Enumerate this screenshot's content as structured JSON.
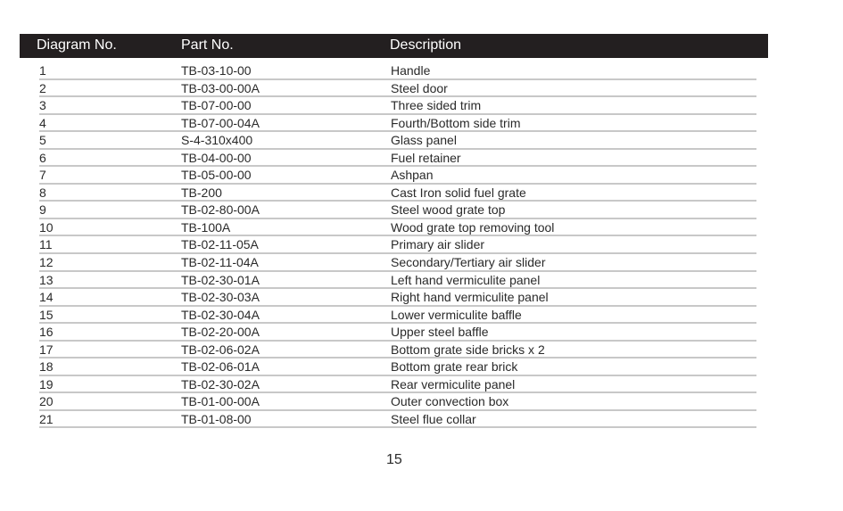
{
  "table": {
    "headers": [
      "Diagram No.",
      "Part No.",
      "Description"
    ],
    "rows": [
      [
        "1",
        "TB-03-10-00",
        "Handle"
      ],
      [
        "2",
        "TB-03-00-00A",
        "Steel door"
      ],
      [
        "3",
        "TB-07-00-00",
        "Three sided trim"
      ],
      [
        "4",
        "TB-07-00-04A",
        "Fourth/Bottom side trim"
      ],
      [
        "5",
        "S-4-310x400",
        "Glass panel"
      ],
      [
        "6",
        "TB-04-00-00",
        "Fuel retainer"
      ],
      [
        "7",
        "TB-05-00-00",
        "Ashpan"
      ],
      [
        "8",
        "TB-200",
        "Cast Iron solid fuel grate"
      ],
      [
        "9",
        "TB-02-80-00A",
        "Steel wood grate top"
      ],
      [
        "10",
        "TB-100A",
        "Wood grate top removing tool"
      ],
      [
        "11",
        "TB-02-11-05A",
        "Primary air slider"
      ],
      [
        "12",
        "TB-02-11-04A",
        "Secondary/Tertiary air slider"
      ],
      [
        "13",
        "TB-02-30-01A",
        "Left hand vermiculite panel"
      ],
      [
        "14",
        "TB-02-30-03A",
        "Right hand vermiculite panel"
      ],
      [
        "15",
        "TB-02-30-04A",
        "Lower vermiculite baffle"
      ],
      [
        "16",
        "TB-02-20-00A",
        "Upper steel baffle"
      ],
      [
        "17",
        "TB-02-06-02A",
        "Bottom grate side bricks x 2"
      ],
      [
        "18",
        "TB-02-06-01A",
        "Bottom grate rear brick"
      ],
      [
        "19",
        "TB-02-30-02A",
        "Rear vermiculite panel"
      ],
      [
        "20",
        "TB-01-00-00A",
        "Outer convection box"
      ],
      [
        "21",
        "TB-01-08-00",
        "Steel flue collar"
      ]
    ]
  },
  "page_number": "15"
}
